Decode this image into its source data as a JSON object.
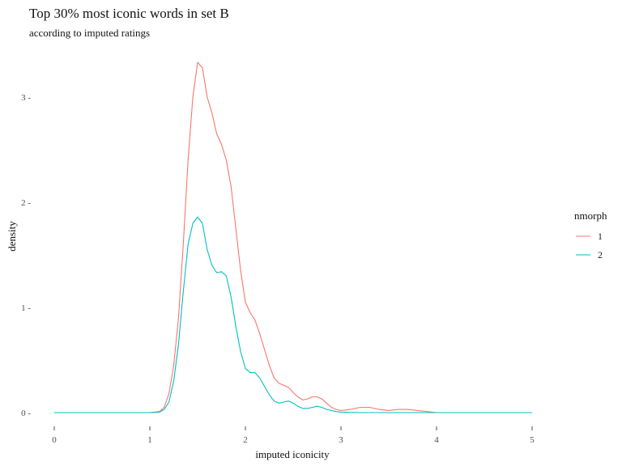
{
  "chart_data": {
    "type": "line",
    "title": "Top 30% most iconic words in set B",
    "subtitle": "according to imputed ratings",
    "xlabel": "imputed iconicity",
    "ylabel": "density",
    "xlim": [
      0,
      5
    ],
    "ylim": [
      0,
      3.4
    ],
    "xticks": [
      0,
      1,
      2,
      3,
      4,
      5
    ],
    "xtick_labels": [
      "0",
      "1",
      "2",
      "3",
      "4",
      "5"
    ],
    "yticks": [
      0,
      1,
      2,
      3
    ],
    "ytick_labels": [
      "0 -",
      "1 -",
      "2 -",
      "3 -"
    ],
    "grid": false,
    "legend": {
      "title": "nmorph",
      "position": "right"
    },
    "series": [
      {
        "name": "1",
        "color": "#F8766D",
        "x": [
          0,
          1.0,
          1.1,
          1.15,
          1.2,
          1.25,
          1.3,
          1.35,
          1.4,
          1.45,
          1.5,
          1.55,
          1.6,
          1.65,
          1.7,
          1.75,
          1.8,
          1.85,
          1.9,
          1.95,
          2.0,
          2.05,
          2.1,
          2.15,
          2.2,
          2.25,
          2.3,
          2.35,
          2.4,
          2.45,
          2.5,
          2.55,
          2.6,
          2.65,
          2.7,
          2.75,
          2.8,
          2.85,
          2.9,
          2.95,
          3.0,
          3.1,
          3.2,
          3.3,
          3.4,
          3.5,
          3.6,
          3.7,
          3.8,
          3.9,
          4.0,
          5.0
        ],
        "y": [
          0,
          0,
          0.01,
          0.05,
          0.18,
          0.45,
          0.9,
          1.6,
          2.4,
          3.0,
          3.33,
          3.28,
          3.0,
          2.85,
          2.65,
          2.55,
          2.4,
          2.15,
          1.75,
          1.35,
          1.05,
          0.95,
          0.88,
          0.75,
          0.6,
          0.45,
          0.33,
          0.28,
          0.26,
          0.24,
          0.19,
          0.15,
          0.12,
          0.13,
          0.15,
          0.15,
          0.13,
          0.09,
          0.05,
          0.03,
          0.02,
          0.03,
          0.05,
          0.05,
          0.03,
          0.02,
          0.03,
          0.03,
          0.02,
          0.01,
          0,
          0
        ]
      },
      {
        "name": "2",
        "color": "#00BFC4",
        "x": [
          0,
          1.0,
          1.1,
          1.15,
          1.2,
          1.25,
          1.3,
          1.35,
          1.4,
          1.45,
          1.5,
          1.55,
          1.6,
          1.65,
          1.7,
          1.75,
          1.8,
          1.85,
          1.9,
          1.95,
          2.0,
          2.05,
          2.1,
          2.15,
          2.2,
          2.25,
          2.3,
          2.35,
          2.4,
          2.45,
          2.5,
          2.55,
          2.6,
          2.65,
          2.7,
          2.75,
          2.8,
          2.85,
          2.9,
          2.95,
          3.0,
          3.2,
          3.5,
          4.0,
          5.0
        ],
        "y": [
          0,
          0,
          0.005,
          0.03,
          0.1,
          0.3,
          0.65,
          1.15,
          1.6,
          1.8,
          1.86,
          1.8,
          1.55,
          1.4,
          1.33,
          1.34,
          1.3,
          1.1,
          0.82,
          0.58,
          0.42,
          0.38,
          0.38,
          0.33,
          0.25,
          0.17,
          0.11,
          0.09,
          0.1,
          0.11,
          0.09,
          0.06,
          0.04,
          0.04,
          0.05,
          0.06,
          0.05,
          0.03,
          0.02,
          0.01,
          0.005,
          0,
          0,
          0,
          0
        ]
      }
    ]
  }
}
